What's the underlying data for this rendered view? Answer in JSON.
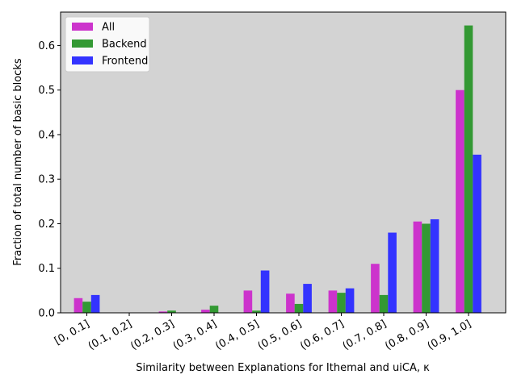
{
  "chart_data": {
    "type": "bar",
    "xlabel": "Similarity between Explanations for Ithemal and uiCA, κ",
    "ylabel": "Fraction of total number of basic blocks",
    "categories": [
      "[0, 0.1]",
      "(0.1, 0.2]",
      "(0.2, 0.3]",
      "(0.3, 0.4]",
      "(0.4, 0.5]",
      "(0.5, 0.6]",
      "(0.6, 0.7]",
      "(0.7, 0.8]",
      "(0.8, 0.9]",
      "(0.9, 1.0]"
    ],
    "ylim": [
      0,
      0.675
    ],
    "yticks": [
      0.0,
      0.1,
      0.2,
      0.3,
      0.4,
      0.5,
      0.6
    ],
    "ytick_labels": [
      "0.0",
      "0.1",
      "0.2",
      "0.3",
      "0.4",
      "0.5",
      "0.6"
    ],
    "grid": false,
    "legend_position": "top-left",
    "background_color": "#d3d3d3",
    "series": [
      {
        "name": "All",
        "color": "#cc33cc",
        "values": [
          0.033,
          0.0,
          0.003,
          0.007,
          0.05,
          0.043,
          0.05,
          0.11,
          0.205,
          0.5
        ]
      },
      {
        "name": "Backend",
        "color": "#339933",
        "values": [
          0.025,
          0.0,
          0.005,
          0.016,
          0.005,
          0.02,
          0.045,
          0.04,
          0.2,
          0.645
        ]
      },
      {
        "name": "Frontend",
        "color": "#3333ff",
        "values": [
          0.04,
          0.0,
          0.0,
          0.0,
          0.095,
          0.065,
          0.055,
          0.18,
          0.21,
          0.355
        ]
      }
    ]
  }
}
